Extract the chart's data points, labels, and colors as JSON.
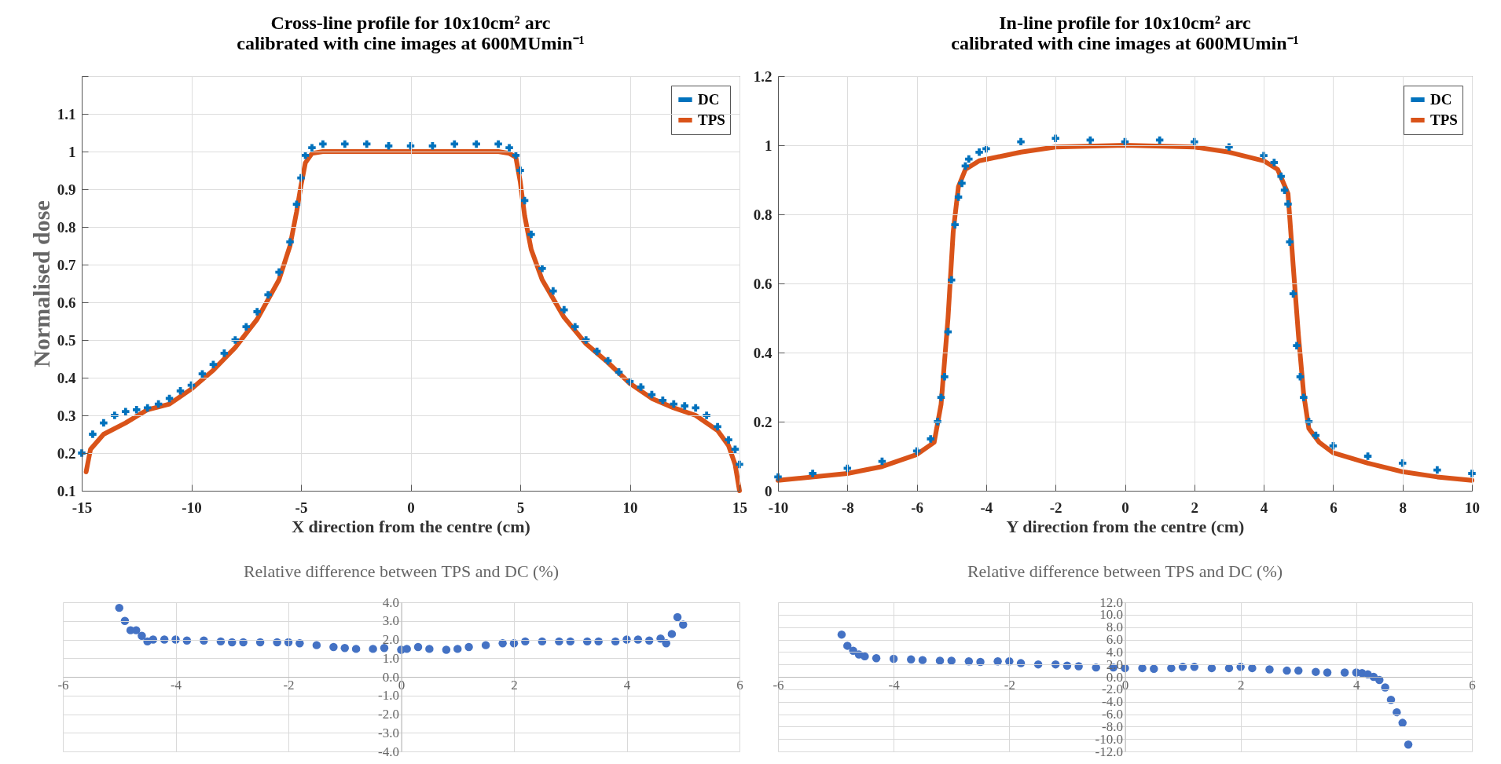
{
  "chart_data": [
    {
      "type": "line",
      "title": "Cross-line profile for 10x10cm² arc\ncalibrated with cine images at 600MUmin⁻¹",
      "xlabel": "X direction from the centre (cm)",
      "ylabel": "Normalised dose",
      "xlim": [
        -15,
        15
      ],
      "xticks": [
        -15,
        -10,
        -5,
        0,
        5,
        10,
        15
      ],
      "ylim": [
        0.1,
        1.2
      ],
      "yticks": [
        0.1,
        0.2,
        0.3,
        0.4,
        0.5,
        0.6,
        0.7,
        0.8,
        0.9,
        1,
        1.1,
        {
          "value": 1.2,
          "label": null
        }
      ],
      "grid": true,
      "legend": "top right",
      "series": [
        {
          "name": "DC",
          "type": "scatter",
          "marker": "cross",
          "color": "#0072bd",
          "x": [
            -15,
            -14.5,
            -14,
            -13.5,
            -13,
            -12.5,
            -12,
            -11.5,
            -11,
            -10.5,
            -10,
            -9.5,
            -9,
            -8.5,
            -8,
            -7.5,
            -7,
            -6.5,
            -6,
            -5.5,
            -5.2,
            -5,
            -4.8,
            -4.5,
            -4,
            -3,
            -2,
            -1,
            0,
            1,
            2,
            3,
            4,
            4.5,
            4.8,
            5,
            5.2,
            5.5,
            6,
            6.5,
            7,
            7.5,
            8,
            8.5,
            9,
            9.5,
            10,
            10.5,
            11,
            11.5,
            12,
            12.5,
            13,
            13.5,
            14,
            14.5,
            14.8,
            15
          ],
          "values": [
            0.2,
            0.25,
            0.28,
            0.3,
            0.31,
            0.315,
            0.32,
            0.33,
            0.345,
            0.365,
            0.38,
            0.41,
            0.435,
            0.465,
            0.5,
            0.535,
            0.575,
            0.62,
            0.68,
            0.76,
            0.86,
            0.93,
            0.99,
            1.01,
            1.02,
            1.02,
            1.02,
            1.015,
            1.015,
            1.015,
            1.02,
            1.02,
            1.02,
            1.01,
            0.99,
            0.95,
            0.87,
            0.78,
            0.69,
            0.63,
            0.58,
            0.535,
            0.5,
            0.47,
            0.445,
            0.415,
            0.39,
            0.375,
            0.355,
            0.34,
            0.33,
            0.325,
            0.32,
            0.3,
            0.27,
            0.235,
            0.21,
            0.17
          ]
        },
        {
          "name": "TPS",
          "type": "line",
          "line_style": "solid",
          "color": "#d95319",
          "x": [
            -14.8,
            -14.6,
            -14,
            -13,
            -12,
            -11,
            -10,
            -9,
            -8,
            -7,
            -6,
            -5.5,
            -5.2,
            -5,
            -4.8,
            -4.5,
            -4,
            0,
            4,
            4.5,
            4.8,
            5,
            5.2,
            5.5,
            6,
            7,
            8,
            9,
            10,
            11,
            12,
            13,
            14,
            14.5,
            14.8,
            15
          ],
          "values": [
            0.15,
            0.21,
            0.25,
            0.28,
            0.315,
            0.33,
            0.37,
            0.42,
            0.48,
            0.555,
            0.66,
            0.75,
            0.84,
            0.91,
            0.97,
            0.995,
            1.0,
            1.0,
            1.0,
            0.995,
            0.985,
            0.92,
            0.83,
            0.74,
            0.66,
            0.56,
            0.49,
            0.44,
            0.385,
            0.345,
            0.32,
            0.3,
            0.26,
            0.22,
            0.17,
            0.1
          ]
        }
      ]
    },
    {
      "type": "line",
      "title": "In-line profile for 10x10cm² arc\ncalibrated with cine images at 600MUmin⁻¹",
      "xlabel": "Y direction from the centre (cm)",
      "xlim": [
        -10,
        10
      ],
      "xticks": [
        -10,
        -8,
        -6,
        -4,
        -2,
        0,
        2,
        4,
        6,
        8,
        10
      ],
      "ylim": [
        0,
        1.2
      ],
      "yticks": [
        0,
        0.2,
        0.4,
        0.6,
        0.8,
        1,
        1.2
      ],
      "grid": true,
      "legend": "top right",
      "series": [
        {
          "name": "DC",
          "type": "scatter",
          "marker": "cross",
          "color": "#0072bd",
          "x": [
            -10,
            -9,
            -8,
            -7,
            -6,
            -5.6,
            -5.4,
            -5.3,
            -5.2,
            -5.1,
            -5,
            -4.9,
            -4.8,
            -4.7,
            -4.6,
            -4.5,
            -4.2,
            -4,
            -3,
            -2,
            -1,
            0,
            1,
            2,
            3,
            4,
            4.3,
            4.5,
            4.6,
            4.7,
            4.75,
            4.85,
            4.95,
            5.05,
            5.15,
            5.3,
            5.5,
            6,
            7,
            8,
            9,
            10
          ],
          "values": [
            0.04,
            0.05,
            0.065,
            0.085,
            0.115,
            0.15,
            0.2,
            0.27,
            0.33,
            0.46,
            0.61,
            0.77,
            0.85,
            0.89,
            0.94,
            0.96,
            0.98,
            0.99,
            1.01,
            1.02,
            1.015,
            1.01,
            1.015,
            1.01,
            0.995,
            0.97,
            0.95,
            0.91,
            0.87,
            0.83,
            0.72,
            0.57,
            0.42,
            0.33,
            0.27,
            0.2,
            0.16,
            0.13,
            0.1,
            0.08,
            0.06,
            0.05
          ]
        },
        {
          "name": "TPS",
          "type": "line",
          "line_style": "solid",
          "color": "#d95319",
          "x": [
            -10,
            -8,
            -7,
            -6,
            -5.5,
            -5.3,
            -5.1,
            -4.95,
            -4.8,
            -4.6,
            -4.2,
            -3,
            -2,
            0,
            2,
            3,
            4,
            4.4,
            4.7,
            4.85,
            5,
            5.15,
            5.3,
            5.6,
            6,
            7,
            8,
            9,
            10
          ],
          "values": [
            0.03,
            0.05,
            0.07,
            0.105,
            0.14,
            0.25,
            0.5,
            0.75,
            0.88,
            0.93,
            0.955,
            0.98,
            0.995,
            1.0,
            0.995,
            0.98,
            0.955,
            0.93,
            0.86,
            0.65,
            0.45,
            0.28,
            0.18,
            0.14,
            0.11,
            0.08,
            0.055,
            0.04,
            0.03
          ]
        }
      ]
    },
    {
      "type": "scatter",
      "title": "Relative difference between TPS and DC (%)",
      "marker": "circle",
      "xlim": [
        -6,
        6
      ],
      "xticks": [
        -6,
        -4,
        -2,
        0,
        2,
        4,
        6
      ],
      "ylim": [
        -4,
        4
      ],
      "yticks": [
        {
          "value": -4,
          "label": "-4.0"
        },
        {
          "value": -3,
          "label": "-3.0"
        },
        {
          "value": -2,
          "label": "-2.0"
        },
        {
          "value": -1,
          "label": "-1.0"
        },
        {
          "value": 0,
          "label": "0.0"
        },
        {
          "value": 1,
          "label": "1.0"
        },
        {
          "value": 2,
          "label": "2.0"
        },
        {
          "value": 3,
          "label": "3.0"
        },
        {
          "value": 4,
          "label": "4.0"
        }
      ],
      "grid": true,
      "series": [
        {
          "color": "#4472c4",
          "x": [
            -5,
            -4.9,
            -4.8,
            -4.7,
            -4.6,
            -4.5,
            -4.4,
            -4.2,
            -4,
            -3.8,
            -3.5,
            -3.2,
            -3,
            -2.8,
            -2.5,
            -2.2,
            -2,
            -1.8,
            -1.5,
            -1.2,
            -1,
            -0.8,
            -0.5,
            -0.3,
            0,
            0.1,
            0.3,
            0.5,
            0.8,
            1,
            1.2,
            1.5,
            1.8,
            2,
            2.2,
            2.5,
            2.8,
            3,
            3.3,
            3.5,
            3.8,
            4,
            4.2,
            4.4,
            4.6,
            4.7,
            4.8,
            4.9,
            5
          ],
          "values": [
            3.7,
            3.0,
            2.5,
            2.5,
            2.2,
            1.9,
            2.0,
            2.0,
            2.0,
            1.95,
            1.95,
            1.9,
            1.85,
            1.85,
            1.85,
            1.85,
            1.85,
            1.8,
            1.7,
            1.6,
            1.55,
            1.5,
            1.5,
            1.55,
            1.45,
            1.5,
            1.6,
            1.5,
            1.45,
            1.5,
            1.6,
            1.7,
            1.8,
            1.8,
            1.9,
            1.9,
            1.9,
            1.9,
            1.9,
            1.9,
            1.9,
            2.0,
            2.0,
            1.95,
            2.05,
            1.8,
            2.3,
            3.2,
            2.8
          ]
        }
      ]
    },
    {
      "type": "scatter",
      "title": "Relative difference between TPS and DC (%)",
      "marker": "circle",
      "xlim": [
        -6,
        6
      ],
      "xticks": [
        -6,
        -4,
        -2,
        0,
        2,
        4,
        6
      ],
      "ylim": [
        -12,
        12
      ],
      "yticks": [
        {
          "value": -12,
          "label": "-12.0"
        },
        {
          "value": -10,
          "label": "-10.0"
        },
        {
          "value": -8,
          "label": "-8.0"
        },
        {
          "value": -6,
          "label": "-6.0"
        },
        {
          "value": -4,
          "label": "-4.0"
        },
        {
          "value": -2,
          "label": "-2.0"
        },
        {
          "value": 0,
          "label": "0.0"
        },
        {
          "value": 2,
          "label": "2.0"
        },
        {
          "value": 4,
          "label": "4.0"
        },
        {
          "value": 6,
          "label": "6.0"
        },
        {
          "value": 8,
          "label": "8.0"
        },
        {
          "value": 10,
          "label": "10.0"
        },
        {
          "value": 12,
          "label": "12.0"
        }
      ],
      "grid": true,
      "series": [
        {
          "color": "#4472c4",
          "x": [
            -4.9,
            -4.8,
            -4.7,
            -4.6,
            -4.5,
            -4.3,
            -4,
            -3.7,
            -3.5,
            -3.2,
            -3,
            -2.7,
            -2.5,
            -2.2,
            -2,
            -1.8,
            -1.5,
            -1.2,
            -1,
            -0.8,
            -0.5,
            -0.2,
            0,
            0.3,
            0.5,
            0.8,
            1,
            1.2,
            1.5,
            1.8,
            2,
            2.2,
            2.5,
            2.8,
            3,
            3.3,
            3.5,
            3.8,
            4,
            4.1,
            4.2,
            4.3,
            4.4,
            4.5,
            4.6,
            4.7,
            4.8,
            4.9
          ],
          "values": [
            6.8,
            5.0,
            4.2,
            3.6,
            3.3,
            3.0,
            2.9,
            2.8,
            2.7,
            2.6,
            2.6,
            2.5,
            2.4,
            2.5,
            2.5,
            2.2,
            2.0,
            2.0,
            1.8,
            1.7,
            1.5,
            1.5,
            1.4,
            1.4,
            1.3,
            1.4,
            1.6,
            1.6,
            1.4,
            1.4,
            1.6,
            1.4,
            1.2,
            1.0,
            1.0,
            0.8,
            0.7,
            0.7,
            0.7,
            0.6,
            0.4,
            0.0,
            -0.5,
            -1.7,
            -3.7,
            -5.7,
            -7.4,
            -10.9
          ]
        }
      ]
    }
  ]
}
